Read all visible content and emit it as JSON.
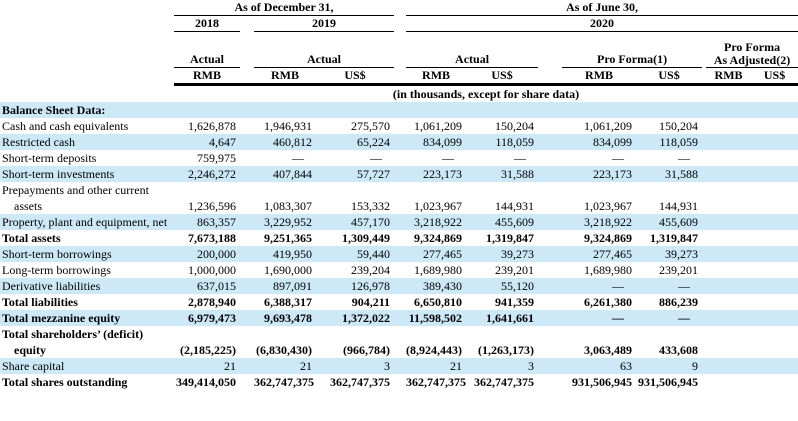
{
  "title_groups": {
    "december": "As of December 31,",
    "june": "As of June 30,"
  },
  "years": {
    "y2018": "2018",
    "y2019": "2019",
    "y2020": "2020"
  },
  "scenario_headers": {
    "actual_2018": "Actual",
    "actual_2019": "Actual",
    "actual_2020": "Actual",
    "pro_forma": "Pro Forma(1)",
    "pro_forma_as_adjusted_line1": "Pro Forma",
    "pro_forma_as_adjusted_line2": "As Adjusted(2)"
  },
  "currency_headers": {
    "c1": "RMB",
    "c2": "RMB",
    "c3": "US$",
    "c4": "RMB",
    "c5": "US$",
    "c6": "RMB",
    "c7": "US$",
    "c8": "RMB",
    "c9": "US$"
  },
  "units_note": "(in thousands, except for share data)",
  "colors": {
    "row_shade": "#cde8f7",
    "rule": "#000000",
    "text": "#000000"
  },
  "rows": [
    {
      "label": "Balance Sheet Data:",
      "bold": true,
      "shaded": true,
      "values": [
        "",
        "",
        "",
        "",
        "",
        "",
        "",
        "",
        ""
      ]
    },
    {
      "label": "Cash and cash equivalents",
      "bold": false,
      "shaded": false,
      "values": [
        "1,626,878",
        "1,946,931",
        "275,570",
        "1,061,209",
        "150,204",
        "1,061,209",
        "150,204",
        "",
        ""
      ]
    },
    {
      "label": "Restricted cash",
      "bold": false,
      "shaded": true,
      "values": [
        "4,647",
        "460,812",
        "65,224",
        "834,099",
        "118,059",
        "834,099",
        "118,059",
        "",
        ""
      ]
    },
    {
      "label": "Short-term deposits",
      "bold": false,
      "shaded": false,
      "values": [
        "759,975",
        "—",
        "—",
        "—",
        "—",
        "—",
        "—",
        "",
        ""
      ]
    },
    {
      "label": "Short-term investments",
      "bold": false,
      "shaded": true,
      "values": [
        "2,246,272",
        "407,844",
        "57,727",
        "223,173",
        "31,588",
        "223,173",
        "31,588",
        "",
        ""
      ]
    },
    {
      "label": "Prepayments and other current assets",
      "bold": false,
      "shaded": false,
      "values": [
        "1,236,596",
        "1,083,307",
        "153,332",
        "1,023,967",
        "144,931",
        "1,023,967",
        "144,931",
        "",
        ""
      ]
    },
    {
      "label": "Property, plant and equipment, net",
      "bold": false,
      "shaded": true,
      "values": [
        "863,357",
        "3,229,952",
        "457,170",
        "3,218,922",
        "455,609",
        "3,218,922",
        "455,609",
        "",
        ""
      ]
    },
    {
      "label": "Total assets",
      "bold": true,
      "shaded": false,
      "values": [
        "7,673,188",
        "9,251,365",
        "1,309,449",
        "9,324,869",
        "1,319,847",
        "9,324,869",
        "1,319,847",
        "",
        ""
      ]
    },
    {
      "label": "Short-term borrowings",
      "bold": false,
      "shaded": true,
      "values": [
        "200,000",
        "419,950",
        "59,440",
        "277,465",
        "39,273",
        "277,465",
        "39,273",
        "",
        ""
      ]
    },
    {
      "label": "Long-term borrowings",
      "bold": false,
      "shaded": false,
      "values": [
        "1,000,000",
        "1,690,000",
        "239,204",
        "1,689,980",
        "239,201",
        "1,689,980",
        "239,201",
        "",
        ""
      ]
    },
    {
      "label": "Derivative liabilities",
      "bold": false,
      "shaded": true,
      "values": [
        "637,015",
        "897,091",
        "126,978",
        "389,430",
        "55,120",
        "—",
        "—",
        "",
        ""
      ]
    },
    {
      "label": "Total liabilities",
      "bold": true,
      "shaded": false,
      "values": [
        "2,878,940",
        "6,388,317",
        "904,211",
        "6,650,810",
        "941,359",
        "6,261,380",
        "886,239",
        "",
        ""
      ]
    },
    {
      "label": "Total mezzanine equity",
      "bold": true,
      "shaded": true,
      "values": [
        "6,979,473",
        "9,693,478",
        "1,372,022",
        "11,598,502",
        "1,641,661",
        "—",
        "—",
        "",
        ""
      ]
    },
    {
      "label": "Total shareholders’ (deficit) equity",
      "bold": true,
      "shaded": false,
      "values": [
        "(2,185,225)",
        "(6,830,430)",
        "(966,784)",
        "(8,924,443)",
        "(1,263,173)",
        "3,063,489",
        "433,608",
        "",
        ""
      ]
    },
    {
      "label": "Share capital",
      "bold": false,
      "shaded": true,
      "values": [
        "21",
        "21",
        "3",
        "21",
        "3",
        "63",
        "9",
        "",
        ""
      ]
    },
    {
      "label": "Total shares outstanding",
      "bold": true,
      "shaded": false,
      "values": [
        "349,414,050",
        "362,747,375",
        "362,747,375",
        "362,747,375",
        "362,747,375",
        "931,506,945",
        "931,506,945",
        "",
        ""
      ]
    }
  ]
}
